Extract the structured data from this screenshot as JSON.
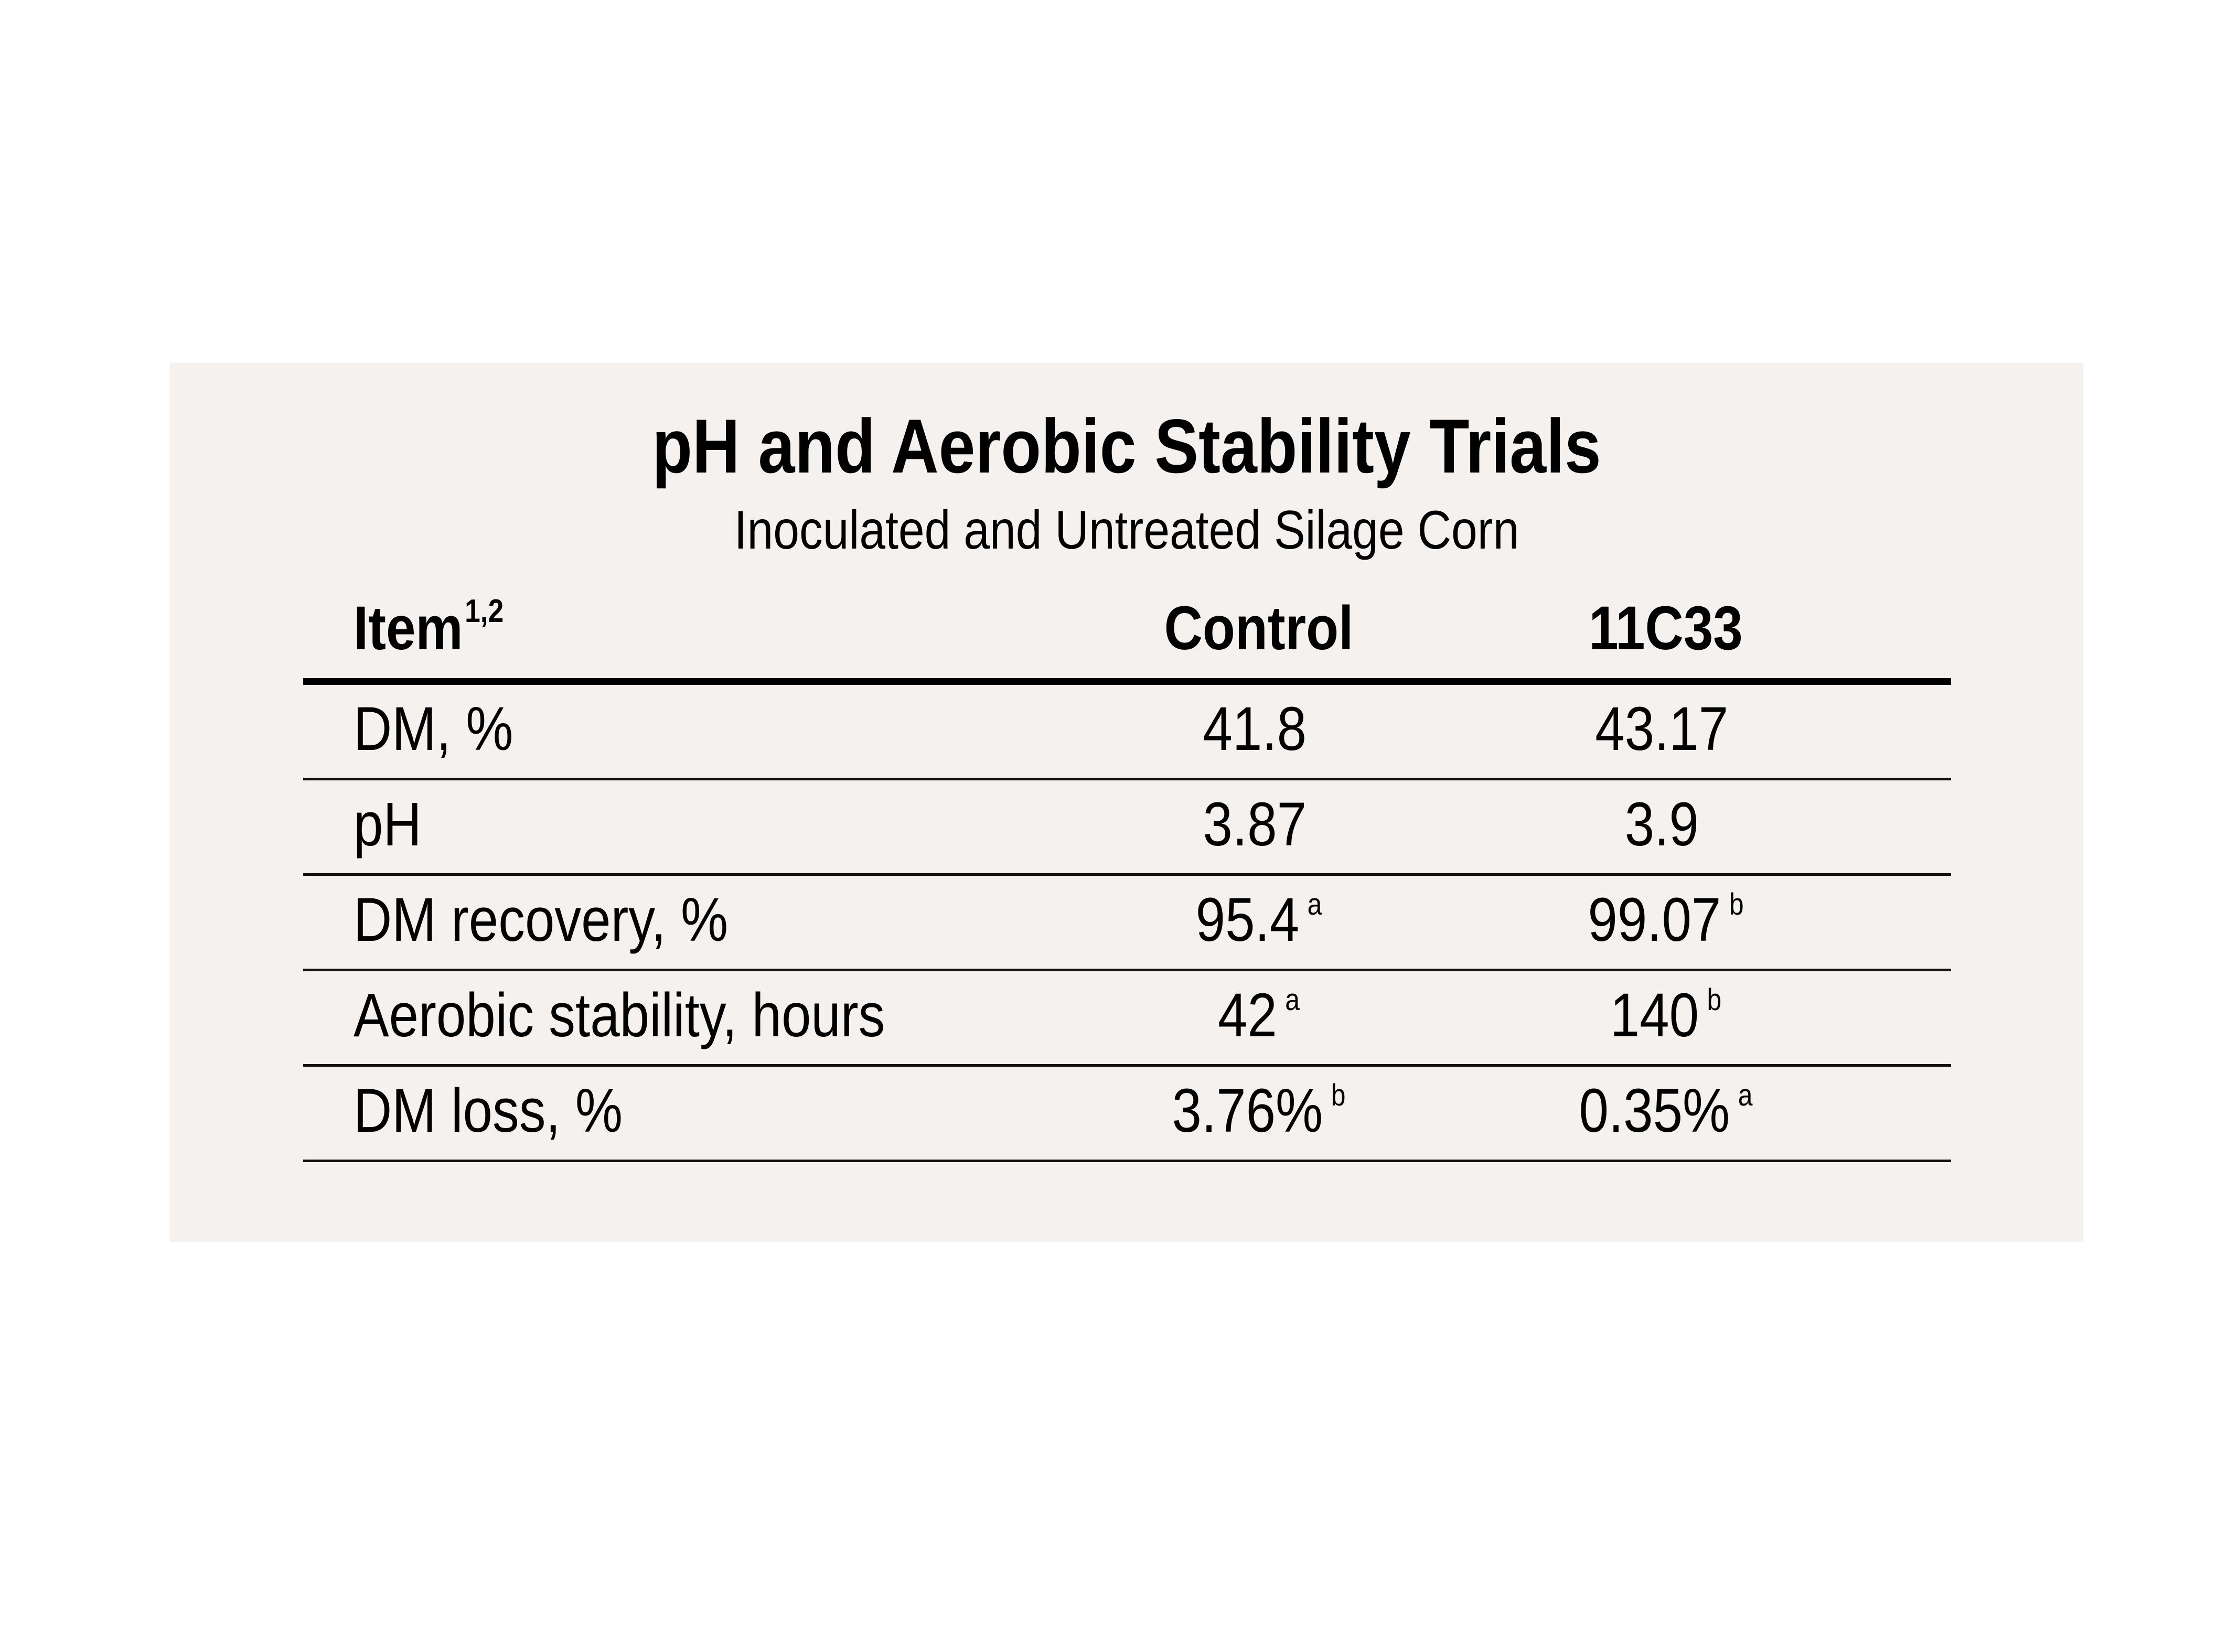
{
  "title": "pH and Aerobic Stability Trials",
  "subtitle": "Inoculated and Untreated Silage Corn",
  "table": {
    "header": {
      "item": "Item",
      "item_footnote": "1,2",
      "col1": "Control",
      "col2": "11C33"
    },
    "rows": [
      {
        "item": "DM, %",
        "c1": "41.8",
        "c1_sup": "",
        "c2": "43.17",
        "c2_sup": ""
      },
      {
        "item": "pH",
        "c1": "3.87",
        "c1_sup": "",
        "c2": "3.9",
        "c2_sup": ""
      },
      {
        "item": "DM recovery, %",
        "c1": "95.4",
        "c1_sup": "a",
        "c2": "99.07",
        "c2_sup": "b"
      },
      {
        "item": "Aerobic stability, hours",
        "c1": "42",
        "c1_sup": "a",
        "c2": "140",
        "c2_sup": "b"
      },
      {
        "item": "DM loss, %",
        "c1": "3.76%",
        "c1_sup": "b",
        "c2": "0.35%",
        "c2_sup": "a"
      }
    ]
  }
}
